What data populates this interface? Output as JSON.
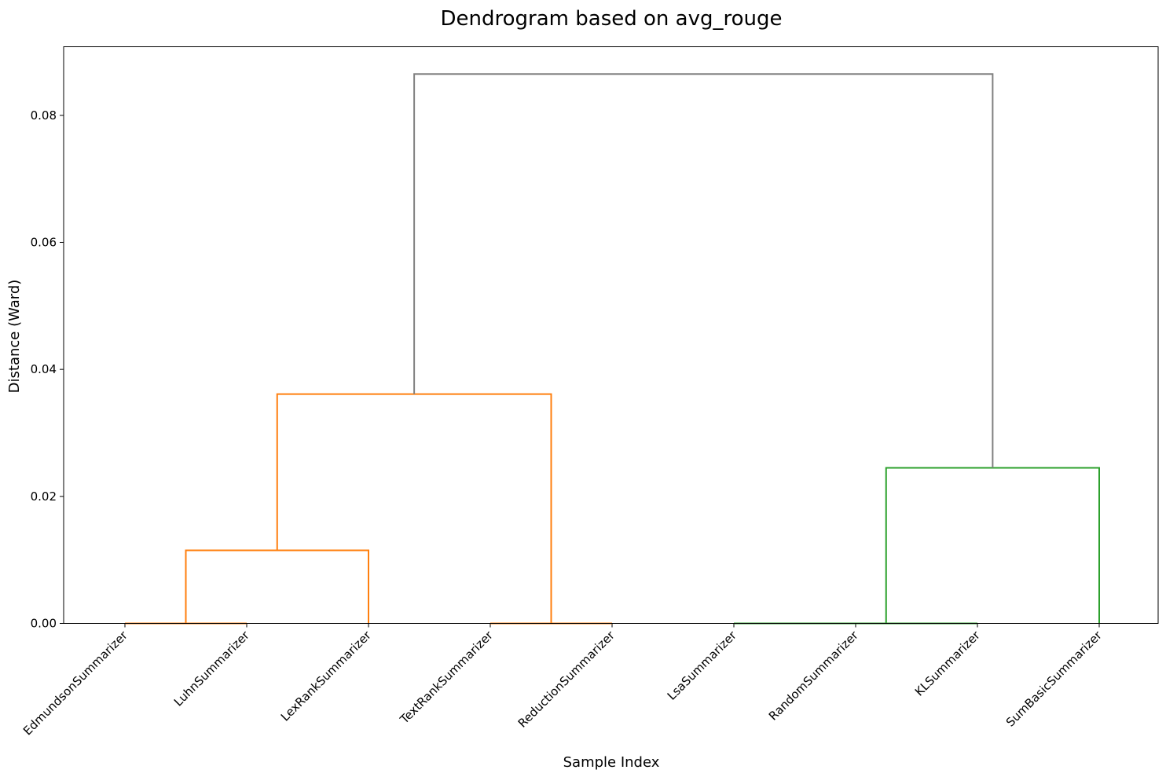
{
  "chart_data": {
    "type": "dendrogram",
    "title": "Dendrogram based on avg_rouge",
    "xlabel": "Sample Index",
    "ylabel": "Distance (Ward)",
    "ylim": [
      0,
      0.0908
    ],
    "yticks": [
      "0.00",
      "0.02",
      "0.04",
      "0.06",
      "0.08"
    ],
    "ytick_values": [
      0,
      0.02,
      0.04,
      0.06,
      0.08
    ],
    "grid": false,
    "leaves": [
      "EdmundsonSummarizer",
      "LuhnSummarizer",
      "LexRankSummarizer",
      "TextRankSummarizer",
      "ReductionSummarizer",
      "LsaSummarizer",
      "RandomSummarizer",
      "KLSummarizer",
      "SumBasicSummarizer"
    ],
    "colors": {
      "cluster_orange": "#ff7f0e",
      "cluster_green": "#2ca02c",
      "above_threshold": "#808080"
    },
    "links": [
      {
        "left": "EdmundsonSummarizer",
        "right": "LuhnSummarizer",
        "height": 0.0,
        "color": "cluster_orange"
      },
      {
        "left": "TextRankSummarizer",
        "right": "ReductionSummarizer",
        "height": 0.0,
        "color": "cluster_orange"
      },
      {
        "left": "LsaSummarizer",
        "right": "RandomSummarizer",
        "height": 0.0,
        "color": "cluster_green"
      },
      {
        "left": "LsaSummarizer+RandomSummarizer",
        "right": "KLSummarizer",
        "height": 0.0,
        "color": "cluster_green"
      },
      {
        "left": "EdmundsonSummarizer+LuhnSummarizer",
        "right": "LexRankSummarizer",
        "height": 0.0115,
        "color": "cluster_orange"
      },
      {
        "left": "KLSummarizer cluster",
        "right": "SumBasicSummarizer",
        "height": 0.0245,
        "color": "cluster_green"
      },
      {
        "left": "LexRank cluster",
        "right": "TextRank+Reduction",
        "height": 0.0361,
        "color": "cluster_orange"
      },
      {
        "left": "orange cluster",
        "right": "green cluster",
        "height": 0.0865,
        "color": "above_threshold"
      }
    ]
  }
}
